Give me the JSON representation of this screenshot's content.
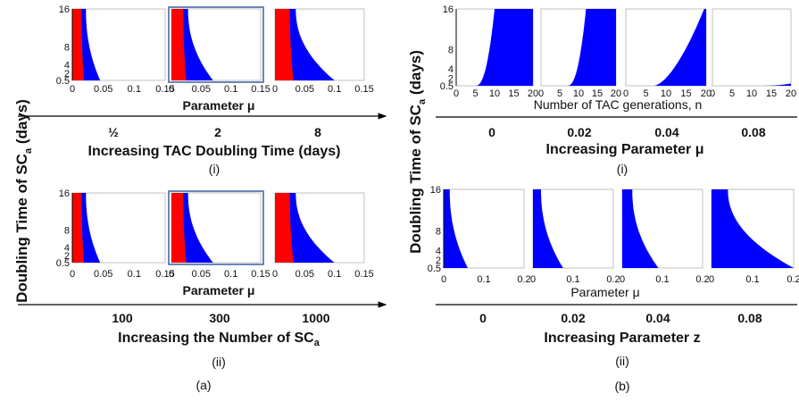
{
  "colors": {
    "red": "#ff0000",
    "blue": "#0000ff",
    "frame": "#3b5fa0",
    "axis": "#000000"
  },
  "panel_a": {
    "ylabel_main": "Doubling Time of SC",
    "ylabel_sub": "a",
    "ylabel_unit": " (days)",
    "caption": "(a)",
    "row_i": {
      "xlabel": "Parameter μ",
      "arrow_values": [
        "½",
        "2",
        "8"
      ],
      "arrow_label": "Increasing TAC Doubling Time (days)",
      "sublabel": "(i)"
    },
    "row_ii": {
      "xlabel": "Parameter μ",
      "arrow_values": [
        "100",
        "300",
        "1000"
      ],
      "arrow_label_main": "Increasing the Number of SC",
      "arrow_label_sub": "a",
      "sublabel": "(ii)"
    }
  },
  "panel_b": {
    "ylabel_main": "Doubling Time of SC",
    "ylabel_sub": "a",
    "ylabel_unit": " (days)",
    "caption": "(b)",
    "row_i": {
      "xlabel": "Number of TAC generations, n",
      "arrow_values": [
        "0",
        "0.02",
        "0.04",
        "0.08"
      ],
      "arrow_label": "Increasing Parameter μ",
      "sublabel": "(i)"
    },
    "row_ii": {
      "xlabel": "Parameter μ",
      "arrow_values": [
        "0",
        "0.02",
        "0.04",
        "0.08"
      ],
      "arrow_label": "Increasing Parameter z",
      "sublabel": "(ii)"
    }
  },
  "chart_data": [
    {
      "type": "area",
      "panel": "a-i",
      "xlabel": "Parameter μ",
      "ylabel": "Doubling Time of SCa (days)",
      "yticks": [
        "0.5",
        "2",
        "4",
        "8",
        "16"
      ],
      "ylim": [
        0.5,
        16
      ],
      "subplots": [
        {
          "condition": "½",
          "xlim": [
            0,
            0.15
          ],
          "xticks": [
            "0",
            "0.05",
            "0.1",
            "0.15"
          ],
          "red_edge": 0.015,
          "blue_edge_top": 0.022,
          "blue_edge_bottom": 0.045,
          "highlighted": false
        },
        {
          "condition": "2",
          "xlim": [
            0,
            0.15
          ],
          "xticks": [
            "0",
            "0.05",
            "0.1",
            "0.15"
          ],
          "red_edge": 0.02,
          "blue_edge_top": 0.028,
          "blue_edge_bottom": 0.07,
          "highlighted": true
        },
        {
          "condition": "8",
          "xlim": [
            0,
            0.15
          ],
          "xticks": [
            "0",
            "0.05",
            "0.1",
            "0.15"
          ],
          "red_edge": 0.025,
          "blue_edge_top": 0.035,
          "blue_edge_bottom": 0.1,
          "highlighted": false
        }
      ]
    },
    {
      "type": "area",
      "panel": "a-ii",
      "xlabel": "Parameter μ",
      "yticks": [
        "0.5",
        "2",
        "4",
        "8",
        "16"
      ],
      "ylim": [
        0.5,
        16
      ],
      "subplots": [
        {
          "condition": "100",
          "xlim": [
            0,
            0.15
          ],
          "xticks": [
            "0",
            "0.05",
            "0.1",
            "0.15"
          ],
          "red_edge": 0.015,
          "blue_edge_top": 0.022,
          "blue_edge_bottom": 0.045,
          "highlighted": false
        },
        {
          "condition": "300",
          "xlim": [
            0,
            0.15
          ],
          "xticks": [
            "0",
            "0.05",
            "0.1",
            "0.15"
          ],
          "red_edge": 0.02,
          "blue_edge_top": 0.028,
          "blue_edge_bottom": 0.07,
          "highlighted": true
        },
        {
          "condition": "1000",
          "xlim": [
            0,
            0.15
          ],
          "xticks": [
            "0",
            "0.05",
            "0.1",
            "0.15"
          ],
          "red_edge": 0.025,
          "blue_edge_top": 0.035,
          "blue_edge_bottom": 0.1,
          "highlighted": false
        }
      ]
    },
    {
      "type": "area",
      "panel": "b-i",
      "xlabel": "Number of TAC generations, n",
      "yticks": [
        "0.5",
        "2",
        "4",
        "8",
        "16"
      ],
      "ylim": [
        0.5,
        16
      ],
      "subplots": [
        {
          "condition": "0",
          "xlim": [
            0,
            20
          ],
          "xticks": [
            "0",
            "5",
            "10",
            "15",
            "20"
          ],
          "rise_start": 5,
          "rise_end": 10
        },
        {
          "condition": "0.02",
          "xlim": [
            0,
            20
          ],
          "xticks": [
            "0",
            "5",
            "10",
            "15",
            "20"
          ],
          "rise_start": 7,
          "rise_end": 12
        },
        {
          "condition": "0.04",
          "xlim": [
            0,
            20
          ],
          "xticks": [
            "0",
            "5",
            "10",
            "15",
            "20"
          ],
          "rise_start": 7,
          "rise_end": 19.5
        },
        {
          "condition": "0.08",
          "xlim": [
            0,
            20
          ],
          "xticks": [
            "0",
            "5",
            "10",
            "15",
            "20"
          ],
          "rise_start": 12,
          "rise_end": 20,
          "max": 0.9
        }
      ]
    },
    {
      "type": "area",
      "panel": "b-ii",
      "xlabel": "Parameter μ",
      "yticks": [
        "0.5",
        "2",
        "4",
        "8",
        "16"
      ],
      "ylim": [
        0.5,
        16
      ],
      "subplots": [
        {
          "condition": "0",
          "xlim": [
            0,
            0.2
          ],
          "xticks": [
            "0",
            "0.1",
            "0.2"
          ],
          "edge_top": 0.015,
          "edge_bottom": 0.06
        },
        {
          "condition": "0.02",
          "xlim": [
            0,
            0.2
          ],
          "xticks": [
            "0",
            "0.1",
            "0.2"
          ],
          "edge_top": 0.02,
          "edge_bottom": 0.075
        },
        {
          "condition": "0.04",
          "xlim": [
            0,
            0.2
          ],
          "xticks": [
            "0",
            "0.1",
            "0.2"
          ],
          "edge_top": 0.025,
          "edge_bottom": 0.09
        },
        {
          "condition": "0.08",
          "xlim": [
            0,
            0.2
          ],
          "xticks": [
            "0",
            "0.1",
            "0.2"
          ],
          "edge_top": 0.04,
          "edge_bottom": 0.2
        }
      ]
    }
  ]
}
